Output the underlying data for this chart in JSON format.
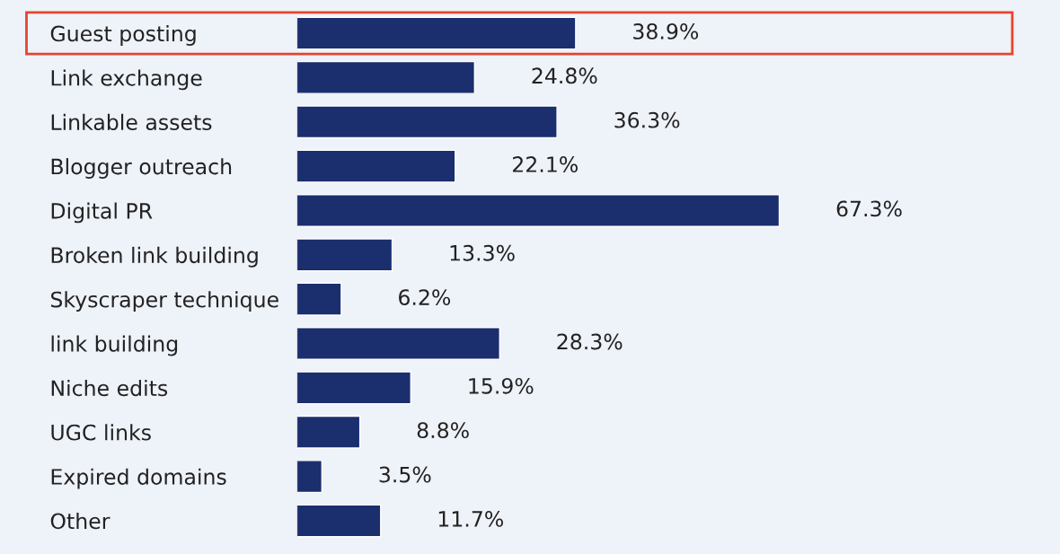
{
  "chart_data": {
    "type": "bar",
    "orientation": "horizontal",
    "categories": [
      "Guest posting",
      "Link exchange",
      "Linkable assets",
      "Blogger outreach",
      "Digital PR",
      "Broken link building",
      "Skyscraper technique",
      "link building",
      "Niche edits",
      "UGC links",
      "Expired domains",
      "Other"
    ],
    "values": [
      38.9,
      24.8,
      36.3,
      22.1,
      67.3,
      13.3,
      6.2,
      28.3,
      15.9,
      8.8,
      3.5,
      11.7
    ],
    "color": "#1b2f6e",
    "data_labels": true,
    "value_labels": [
      "38.9%",
      "24.8%",
      "36.3%",
      "22.1%",
      "67.3%",
      "13.3%",
      "6.2%",
      "28.3%",
      "15.9%",
      "8.8%",
      "3.5%",
      "11.7%"
    ],
    "grid": false,
    "tick_labels": "y"
  }
}
